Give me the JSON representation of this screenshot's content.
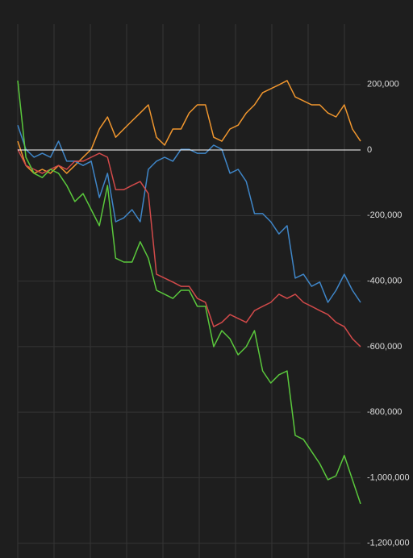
{
  "chart_data": {
    "type": "line",
    "ylim": [
      -1245000,
      384000
    ],
    "yticks": [
      {
        "value": 200000,
        "label": "200,000"
      },
      0,
      {
        "value": -200000,
        "label": "-200,000"
      },
      {
        "value": -400000,
        "label": "-400,000"
      },
      {
        "value": -600000,
        "label": "-600,000"
      },
      {
        "value": -800000,
        "label": "-800,000"
      },
      {
        "value": -1000000,
        "label": "-1,000,000"
      },
      {
        "value": -1200000,
        "label": "-1,200,000"
      }
    ],
    "grid": true,
    "zero_line": true,
    "series": [
      {
        "color": "#f0962e",
        "values": [
          27000,
          -47000,
          -71000,
          -59000,
          -71000,
          -47000,
          -71000,
          -47000,
          -22000,
          2000,
          64000,
          101000,
          39000,
          64000,
          89000,
          113000,
          138000,
          39000,
          15000,
          64000,
          64000,
          113000,
          138000,
          138000,
          39000,
          27000,
          64000,
          76000,
          113000,
          138000,
          175000,
          187000,
          199000,
          212000,
          162000,
          150000,
          138000,
          138000,
          113000,
          101000,
          138000,
          64000,
          27000
        ]
      },
      {
        "color": "#3f86c8",
        "values": [
          76000,
          2000,
          -22000,
          -10000,
          -22000,
          27000,
          -34000,
          -34000,
          -47000,
          -34000,
          -145000,
          -71000,
          -219000,
          -207000,
          -182000,
          -219000,
          -59000,
          -34000,
          -22000,
          -34000,
          2000,
          2000,
          -10000,
          -10000,
          15000,
          2000,
          -71000,
          -59000,
          -96000,
          -194000,
          -194000,
          -219000,
          -256000,
          -231000,
          -391000,
          -379000,
          -416000,
          -403000,
          -465000,
          -428000,
          -379000,
          -428000,
          -465000
        ]
      },
      {
        "color": "#d24a4a",
        "values": [
          2000,
          -47000,
          -59000,
          -71000,
          -59000,
          -47000,
          -59000,
          -34000,
          -34000,
          -22000,
          -10000,
          -22000,
          -121000,
          -121000,
          -108000,
          -96000,
          -133000,
          -379000,
          -391000,
          -403000,
          -416000,
          -416000,
          -453000,
          -465000,
          -539000,
          -526000,
          -502000,
          -514000,
          -526000,
          -490000,
          -477000,
          -465000,
          -440000,
          -453000,
          -440000,
          -465000,
          -477000,
          -490000,
          -502000,
          -526000,
          -539000,
          -576000,
          -600000
        ]
      },
      {
        "color": "#5ac83c",
        "values": [
          212000,
          -22000,
          -71000,
          -84000,
          -59000,
          -71000,
          -108000,
          -157000,
          -133000,
          -182000,
          -231000,
          -108000,
          -330000,
          -342000,
          -342000,
          -280000,
          -330000,
          -428000,
          -440000,
          -453000,
          -428000,
          -428000,
          -477000,
          -477000,
          -600000,
          -551000,
          -576000,
          -625000,
          -600000,
          -551000,
          -674000,
          -711000,
          -686000,
          -674000,
          -871000,
          -883000,
          -920000,
          -957000,
          -1006000,
          -994000,
          -932000,
          -1006000,
          -1080000
        ]
      }
    ]
  }
}
